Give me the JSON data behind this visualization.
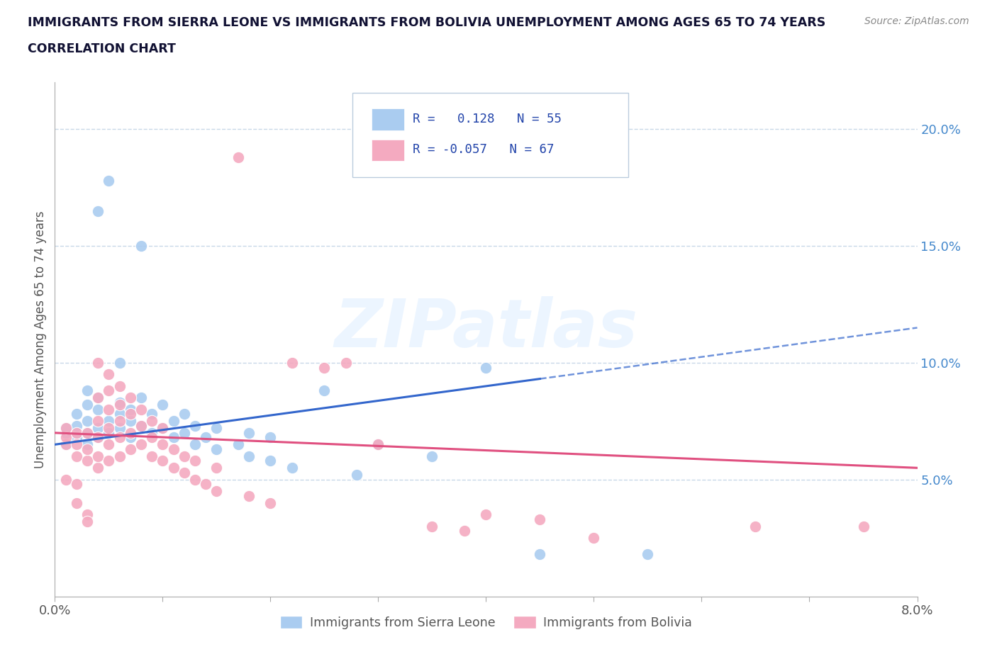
{
  "title_line1": "IMMIGRANTS FROM SIERRA LEONE VS IMMIGRANTS FROM BOLIVIA UNEMPLOYMENT AMONG AGES 65 TO 74 YEARS",
  "title_line2": "CORRELATION CHART",
  "source": "Source: ZipAtlas.com",
  "ylabel": "Unemployment Among Ages 65 to 74 years",
  "xlim": [
    0.0,
    0.08
  ],
  "ylim": [
    0.0,
    0.22
  ],
  "y_ticks": [
    0.05,
    0.1,
    0.15,
    0.2
  ],
  "y_tick_labels": [
    "5.0%",
    "10.0%",
    "15.0%",
    "20.0%"
  ],
  "sierra_leone_color": "#aaccf0",
  "bolivia_color": "#f4aac0",
  "sierra_leone_line_color": "#3366cc",
  "bolivia_line_color": "#e05080",
  "sierra_leone_R": 0.128,
  "sierra_leone_N": 55,
  "bolivia_R": -0.057,
  "bolivia_N": 67,
  "watermark_text": "ZIPatlas",
  "background_color": "#ffffff",
  "grid_color": "#c8d8e8",
  "title_color": "#111133",
  "ylabel_color": "#555555",
  "ytick_color": "#4488cc",
  "xtick_color": "#555555",
  "source_color": "#888888",
  "legend_border_color": "#bbccdd"
}
